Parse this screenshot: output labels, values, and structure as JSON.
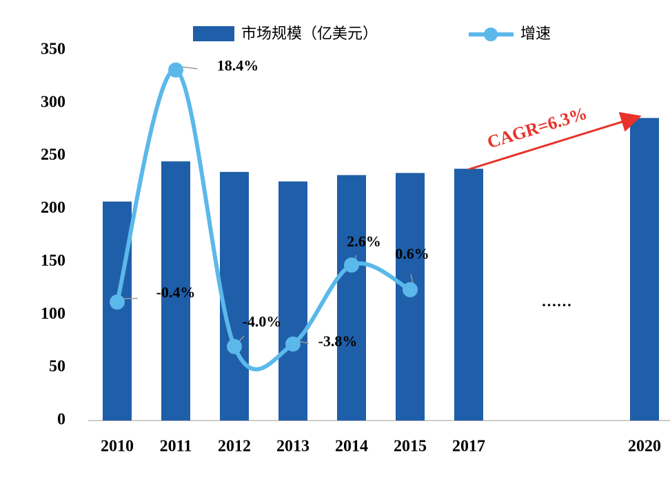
{
  "chart_data": {
    "type": "bar",
    "categories": [
      "2010",
      "2011",
      "2012",
      "2013",
      "2014",
      "2015",
      "2017",
      null,
      null,
      "2020"
    ],
    "series": [
      {
        "name": "市场规模（亿美元）",
        "color": "#1f5ea8",
        "values": [
          207,
          245,
          235,
          226,
          232,
          234,
          238,
          null,
          null,
          286
        ]
      },
      {
        "name": "增速",
        "type": "line",
        "axis": "y2",
        "color": "#5bb8ea",
        "values": [
          -0.4,
          18.4,
          -4.0,
          -3.8,
          2.6,
          0.6,
          null,
          null,
          null,
          null
        ],
        "value_labels": [
          "-0.4%",
          "18.4%",
          "-4.0%",
          "-3.8%",
          "2.6%",
          "0.6%",
          null,
          null,
          null,
          null
        ]
      }
    ],
    "ylim": [
      0,
      350
    ],
    "yticks": [
      0,
      50,
      100,
      150,
      200,
      250,
      300,
      350
    ],
    "y2lim": [
      -10,
      20
    ],
    "annotations": [
      "CAGR=6.3%",
      "……"
    ]
  }
}
